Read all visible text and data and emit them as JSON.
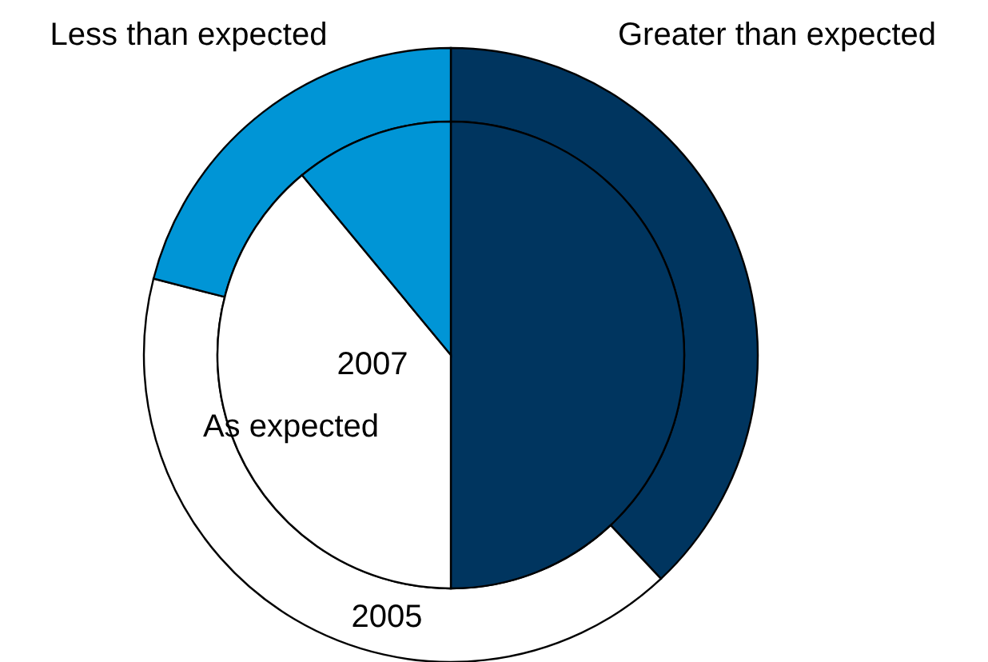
{
  "chart_data": {
    "type": "donut",
    "categories": [
      "Greater than expected",
      "As expected",
      "Less than expected"
    ],
    "colors": [
      "#00355f",
      "#ffffff",
      "#0095d6"
    ],
    "series": [
      {
        "name": "2005",
        "values": [
          38,
          41,
          21
        ]
      },
      {
        "name": "2007",
        "values": [
          50,
          39,
          11
        ]
      }
    ]
  }
}
